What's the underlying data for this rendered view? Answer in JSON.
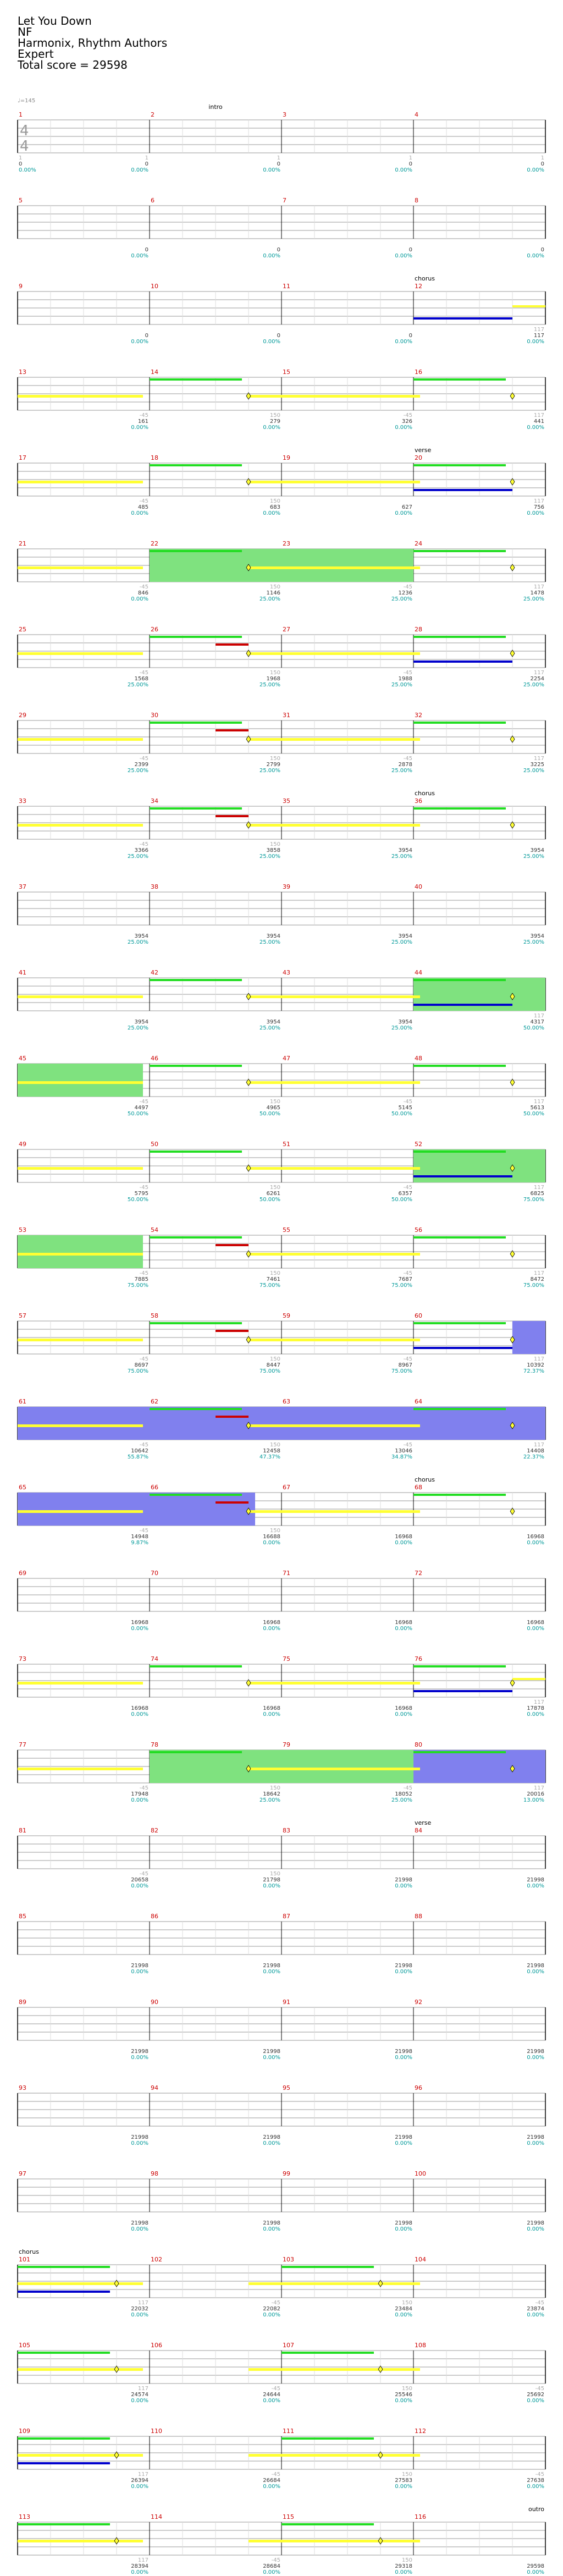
{
  "song": {
    "title": "Let You Down",
    "artist": "NF",
    "charter": "Harmonix, Rhythm Authors",
    "difficulty": "Expert",
    "total_score": "Total score = 29598",
    "tempo": "♩=145"
  },
  "rows": [
    {
      "first": 1,
      "section": "intro",
      "section_measure": 2,
      "bar_text": [
        [
          "1",
          "0",
          "0.00%"
        ],
        [
          "1",
          "0",
          "0.00%"
        ],
        [
          "1",
          "0",
          "0.00%"
        ],
        [
          "1",
          "0",
          "0.00%"
        ]
      ],
      "label_below": [
        "1",
        "0",
        "0.00%"
      ]
    },
    {
      "first": 5,
      "section": "",
      "bar_text": [
        [
          "",
          "0",
          "0.00%"
        ],
        [
          "",
          "0",
          "0.00%"
        ],
        [
          "",
          "0",
          "0.00%"
        ],
        [
          "",
          "0",
          "0.00%"
        ]
      ]
    },
    {
      "first": 9,
      "section": "chorus",
      "section_measure": 4,
      "bar_text": [
        [
          "",
          "0",
          "0.00%"
        ],
        [
          "",
          "0",
          "0.00%"
        ],
        [
          "",
          "0",
          "0.00%"
        ],
        [
          "117",
          "117",
          "0.00%"
        ]
      ]
    },
    {
      "first": 13,
      "section": "",
      "bar_text": [
        [
          "-45",
          "161",
          "0.00%"
        ],
        [
          "150",
          "279",
          "0.00%"
        ],
        [
          "-45",
          "326",
          "0.00%"
        ],
        [
          "117",
          "441",
          "0.00%"
        ]
      ]
    },
    {
      "first": 17,
      "section": "verse",
      "section_measure": 4,
      "bar_text": [
        [
          "-45",
          "485",
          "0.00%"
        ],
        [
          "150",
          "683",
          "0.00%"
        ],
        [
          "",
          "627",
          "0.00%"
        ],
        [
          "117",
          "756",
          "0.00%"
        ]
      ]
    },
    {
      "first": 21,
      "section": "",
      "bar_text": [
        [
          "-45",
          "846",
          "0.00%"
        ],
        [
          "150",
          "1146",
          "25.00%"
        ],
        [
          "-45",
          "1236",
          "25.00%"
        ],
        [
          "117",
          "1478",
          "25.00%"
        ]
      ]
    },
    {
      "first": 25,
      "section": "",
      "bar_text": [
        [
          "-45",
          "1568",
          "25.00%"
        ],
        [
          "150",
          "1968",
          "25.00%"
        ],
        [
          "-45",
          "1988",
          "25.00%"
        ],
        [
          "117",
          "2254",
          "25.00%"
        ]
      ]
    },
    {
      "first": 29,
      "section": "",
      "bar_text": [
        [
          "-45",
          "2399",
          "25.00%"
        ],
        [
          "150",
          "2799",
          "25.00%"
        ],
        [
          "-45",
          "2878",
          "25.00%"
        ],
        [
          "117",
          "3225",
          "25.00%"
        ]
      ]
    },
    {
      "first": 33,
      "section": "chorus",
      "section_measure": 4,
      "bar_text": [
        [
          "-45",
          "3366",
          "25.00%"
        ],
        [
          "150",
          "3858",
          "25.00%"
        ],
        [
          "",
          "3954",
          "25.00%"
        ],
        [
          "",
          "3954",
          "25.00%"
        ]
      ]
    },
    {
      "first": 37,
      "section": "",
      "bar_text": [
        [
          "",
          "3954",
          "25.00%"
        ],
        [
          "",
          "3954",
          "25.00%"
        ],
        [
          "",
          "3954",
          "25.00%"
        ],
        [
          "",
          "3954",
          "25.00%"
        ]
      ]
    },
    {
      "first": 41,
      "section": "",
      "bar_text": [
        [
          "",
          "3954",
          "25.00%"
        ],
        [
          "",
          "3954",
          "25.00%"
        ],
        [
          "",
          "3954",
          "25.00%"
        ],
        [
          "117",
          "4317",
          "50.00%"
        ]
      ]
    },
    {
      "first": 45,
      "section": "",
      "bar_text": [
        [
          "-45",
          "4497",
          "50.00%"
        ],
        [
          "150",
          "4965",
          "50.00%"
        ],
        [
          "-45",
          "5145",
          "50.00%"
        ],
        [
          "117",
          "5613",
          "50.00%"
        ]
      ]
    },
    {
      "first": 49,
      "section": "",
      "bar_text": [
        [
          "-45",
          "5795",
          "50.00%"
        ],
        [
          "150",
          "6261",
          "50.00%"
        ],
        [
          "-45",
          "6357",
          "50.00%"
        ],
        [
          "117",
          "6825",
          "75.00%"
        ]
      ]
    },
    {
      "first": 53,
      "section": "",
      "bar_text": [
        [
          "-45",
          "7885",
          "75.00%"
        ],
        [
          "150",
          "7461",
          "75.00%"
        ],
        [
          "-45",
          "7687",
          "75.00%"
        ],
        [
          "117",
          "8472",
          "75.00%"
        ]
      ]
    },
    {
      "first": 57,
      "section": "",
      "bar_text": [
        [
          "-45",
          "8697",
          "75.00%"
        ],
        [
          "150",
          "8447",
          "75.00%"
        ],
        [
          "-45",
          "8967",
          "75.00%"
        ],
        [
          "117",
          "10392",
          "72.37%"
        ]
      ]
    },
    {
      "first": 61,
      "section": "",
      "bar_text": [
        [
          "-45",
          "10642",
          "55.87%"
        ],
        [
          "150",
          "12458",
          "47.37%"
        ],
        [
          "-45",
          "13046",
          "34.87%"
        ],
        [
          "117",
          "14408",
          "22.37%"
        ]
      ]
    },
    {
      "first": 65,
      "section": "chorus",
      "section_measure": 4,
      "bar_text": [
        [
          "-45",
          "14948",
          "9.87%"
        ],
        [
          "150",
          "16688",
          "0.00%"
        ],
        [
          "",
          "16968",
          "0.00%"
        ],
        [
          "",
          "16968",
          "0.00%"
        ]
      ]
    },
    {
      "first": 69,
      "section": "",
      "bar_text": [
        [
          "",
          "16968",
          "0.00%"
        ],
        [
          "",
          "16968",
          "0.00%"
        ],
        [
          "",
          "16968",
          "0.00%"
        ],
        [
          "",
          "16968",
          "0.00%"
        ]
      ]
    },
    {
      "first": 73,
      "section": "",
      "bar_text": [
        [
          "",
          "16968",
          "0.00%"
        ],
        [
          "",
          "16968",
          "0.00%"
        ],
        [
          "",
          "16968",
          "0.00%"
        ],
        [
          "117",
          "17878",
          "0.00%"
        ]
      ]
    },
    {
      "first": 77,
      "section": "",
      "bar_text": [
        [
          "-45",
          "17948",
          "0.00%"
        ],
        [
          "150",
          "18642",
          "25.00%"
        ],
        [
          "-45",
          "18052",
          "25.00%"
        ],
        [
          "117",
          "20016",
          "13.00%"
        ]
      ]
    },
    {
      "first": 81,
      "section": "verse",
      "section_measure": 4,
      "bar_text": [
        [
          "-45",
          "20658",
          "0.00%"
        ],
        [
          "150",
          "21798",
          "0.00%"
        ],
        [
          "",
          "21998",
          "0.00%"
        ],
        [
          "",
          "21998",
          "0.00%"
        ]
      ]
    },
    {
      "first": 85,
      "section": "",
      "bar_text": [
        [
          "",
          "21998",
          "0.00%"
        ],
        [
          "",
          "21998",
          "0.00%"
        ],
        [
          "",
          "21998",
          "0.00%"
        ],
        [
          "",
          "21998",
          "0.00%"
        ]
      ]
    },
    {
      "first": 89,
      "section": "",
      "bar_text": [
        [
          "",
          "21998",
          "0.00%"
        ],
        [
          "",
          "21998",
          "0.00%"
        ],
        [
          "",
          "21998",
          "0.00%"
        ],
        [
          "",
          "21998",
          "0.00%"
        ]
      ]
    },
    {
      "first": 93,
      "section": "",
      "bar_text": [
        [
          "",
          "21998",
          "0.00%"
        ],
        [
          "",
          "21998",
          "0.00%"
        ],
        [
          "",
          "21998",
          "0.00%"
        ],
        [
          "",
          "21998",
          "0.00%"
        ]
      ]
    },
    {
      "first": 97,
      "section": "",
      "bar_text": [
        [
          "",
          "21998",
          "0.00%"
        ],
        [
          "",
          "21998",
          "0.00%"
        ],
        [
          "",
          "21998",
          "0.00%"
        ],
        [
          "",
          "21998",
          "0.00%"
        ]
      ]
    },
    {
      "first": 101,
      "section": "chorus",
      "section_measure": 1,
      "bar_text": [
        [
          "117",
          "22032",
          "0.00%"
        ],
        [
          "-45",
          "22082",
          "0.00%"
        ],
        [
          "150",
          "23484",
          "0.00%"
        ],
        [
          "-45",
          "23874",
          "0.00%"
        ]
      ]
    },
    {
      "first": 105,
      "section": "",
      "bar_text": [
        [
          "117",
          "24574",
          "0.00%"
        ],
        [
          "-45",
          "24644",
          "0.00%"
        ],
        [
          "150",
          "25546",
          "0.00%"
        ],
        [
          "-45",
          "25692",
          "0.00%"
        ]
      ]
    },
    {
      "first": 109,
      "section": "",
      "bar_text": [
        [
          "117",
          "26394",
          "0.00%"
        ],
        [
          "-45",
          "26684",
          "0.00%"
        ],
        [
          "150",
          "27583",
          "0.00%"
        ],
        [
          "-45",
          "27638",
          "0.00%"
        ]
      ]
    },
    {
      "first": 113,
      "section": "outro",
      "section_measure": 5,
      "bar_text": [
        [
          "117",
          "28394",
          "0.00%"
        ],
        [
          "-45",
          "28684",
          "0.00%"
        ],
        [
          "150",
          "29318",
          "0.00%"
        ],
        [
          "",
          "29598",
          "0.00%"
        ]
      ]
    }
  ],
  "colors": {
    "measure_number": "#cc0000",
    "staff_line": "#999999",
    "score_text": "#333333",
    "percent_text": "#009999",
    "delta_text": "#aaaaaa",
    "phrase_green": "#22dd22",
    "phrase_yellow": "#ffff33",
    "phrase_blue": "#0000cc",
    "overdrive_green": "#7fe27f",
    "overdrive_blue": "#8080ee",
    "red_arrow": "#cc0000"
  }
}
